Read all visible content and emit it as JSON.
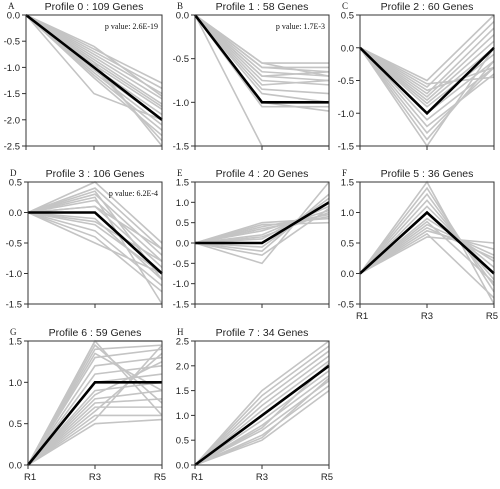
{
  "chart_data": [
    {
      "type": "line",
      "letter": "A",
      "title": "Profile 0 : 109 Genes",
      "pvalue": "p value: 2.6E-19",
      "x": [
        "R1",
        "R3",
        "R5"
      ],
      "show_x_labels": false,
      "ylim": [
        -2.5,
        0.0
      ],
      "yticks": [
        0.0,
        -0.5,
        -1.0,
        -1.5,
        -2.0,
        -2.5
      ],
      "ytick_labels": [
        "0.0",
        "-0.5",
        "-1.0",
        "-1.5",
        "-2.0",
        "-2.5"
      ],
      "profile": [
        0.0,
        -1.0,
        -2.0
      ],
      "genes": [
        [
          0,
          -0.65,
          -1.3
        ],
        [
          0,
          -0.7,
          -1.4
        ],
        [
          0,
          -0.75,
          -1.5
        ],
        [
          0,
          -0.8,
          -1.6
        ],
        [
          0,
          -0.85,
          -1.7
        ],
        [
          0,
          -0.9,
          -1.75
        ],
        [
          0,
          -0.95,
          -1.8
        ],
        [
          0,
          -1.0,
          -1.9
        ],
        [
          0,
          -1.05,
          -2.0
        ],
        [
          0,
          -1.1,
          -2.1
        ],
        [
          0,
          -1.15,
          -2.2
        ],
        [
          0,
          -1.2,
          -2.3
        ],
        [
          0,
          -0.6,
          -1.55
        ],
        [
          0,
          -1.5,
          -2.0
        ],
        [
          0,
          -1.0,
          -2.4
        ],
        [
          0,
          -0.9,
          -2.5
        ]
      ]
    },
    {
      "type": "line",
      "letter": "B",
      "title": "Profile 1 : 58 Genes",
      "pvalue": "p value: 1.7E-3",
      "x": [
        "R1",
        "R3",
        "R5"
      ],
      "show_x_labels": false,
      "ylim": [
        -1.5,
        0.0
      ],
      "yticks": [
        0.0,
        -0.5,
        -1.0,
        -1.5
      ],
      "ytick_labels": [
        "0.0",
        "-0.5",
        "-1.0",
        "-1.5"
      ],
      "profile": [
        0.0,
        -1.0,
        -1.0
      ],
      "genes": [
        [
          0,
          -0.55,
          -0.55
        ],
        [
          0,
          -0.6,
          -0.65
        ],
        [
          0,
          -0.65,
          -0.7
        ],
        [
          0,
          -0.7,
          -0.75
        ],
        [
          0,
          -0.75,
          -0.8
        ],
        [
          0,
          -0.6,
          -0.6
        ],
        [
          0,
          -0.7,
          -0.65
        ],
        [
          0,
          -0.8,
          -0.75
        ],
        [
          0,
          -0.85,
          -0.9
        ],
        [
          0,
          -0.9,
          -1.0
        ],
        [
          0,
          -1.0,
          -1.1
        ],
        [
          0,
          -1.05,
          -1.05
        ],
        [
          0,
          -1.5,
          -1.5
        ],
        [
          0,
          -0.55,
          -0.7
        ]
      ]
    },
    {
      "type": "line",
      "letter": "C",
      "title": "Profile 2 : 60 Genes",
      "pvalue": "",
      "x": [
        "R1",
        "R3",
        "R5"
      ],
      "show_x_labels": false,
      "ylim": [
        -1.5,
        0.5
      ],
      "yticks": [
        0.5,
        0.0,
        -0.5,
        -1.0,
        -1.5
      ],
      "ytick_labels": [
        "0.5",
        "0.0",
        "-0.5",
        "-1.0",
        "-1.5"
      ],
      "profile": [
        0.0,
        -1.0,
        0.0
      ],
      "genes": [
        [
          0,
          -0.5,
          0.5
        ],
        [
          0,
          -0.6,
          0.4
        ],
        [
          0,
          -0.7,
          0.3
        ],
        [
          0,
          -0.75,
          0.2
        ],
        [
          0,
          -0.8,
          0.1
        ],
        [
          0,
          -0.85,
          0.0
        ],
        [
          0,
          -0.9,
          -0.1
        ],
        [
          0,
          -1.0,
          -0.2
        ],
        [
          0,
          -1.1,
          -0.3
        ],
        [
          0,
          -1.2,
          -0.4
        ],
        [
          0,
          -1.3,
          -0.3
        ],
        [
          0,
          -1.4,
          -0.2
        ],
        [
          0,
          -1.5,
          0.0
        ],
        [
          0,
          -0.55,
          -0.45
        ],
        [
          0,
          -0.65,
          -0.3
        ]
      ]
    },
    {
      "type": "line",
      "letter": "D",
      "title": "Profile 3 : 106 Genes",
      "pvalue": "p value: 6.2E-4",
      "x": [
        "R1",
        "R3",
        "R5"
      ],
      "show_x_labels": false,
      "ylim": [
        -1.5,
        0.5
      ],
      "yticks": [
        0.5,
        0.0,
        -0.5,
        -1.0,
        -1.5
      ],
      "ytick_labels": [
        "0.5",
        "0.0",
        "-0.5",
        "-1.0",
        "-1.5"
      ],
      "profile": [
        0.0,
        0.0,
        -1.0
      ],
      "genes": [
        [
          0,
          0.5,
          -0.5
        ],
        [
          0,
          0.4,
          -0.6
        ],
        [
          0,
          0.3,
          -0.7
        ],
        [
          0,
          0.2,
          -0.8
        ],
        [
          0,
          0.1,
          -0.9
        ],
        [
          0,
          0.0,
          -1.0
        ],
        [
          0,
          -0.1,
          -1.1
        ],
        [
          0,
          -0.2,
          -1.0
        ],
        [
          0,
          -0.3,
          -1.2
        ],
        [
          0,
          -0.4,
          -1.3
        ],
        [
          0,
          -0.5,
          -1.0
        ],
        [
          0,
          0.25,
          -1.5
        ],
        [
          0,
          0.1,
          -0.6
        ],
        [
          0,
          -0.15,
          -0.8
        ],
        [
          0,
          0.35,
          -1.1
        ]
      ]
    },
    {
      "type": "line",
      "letter": "E",
      "title": "Profile 4 : 20 Genes",
      "pvalue": "",
      "x": [
        "R1",
        "R3",
        "R5"
      ],
      "show_x_labels": false,
      "ylim": [
        -1.5,
        1.5
      ],
      "yticks": [
        1.5,
        1.0,
        0.5,
        0.0,
        -0.5,
        -1.0,
        -1.5
      ],
      "ytick_labels": [
        "1.5",
        "1.0",
        "0.5",
        "0.0",
        "-0.5",
        "-1.0",
        "-1.5"
      ],
      "profile": [
        0.0,
        0.0,
        1.0
      ],
      "genes": [
        [
          0,
          0.5,
          0.6
        ],
        [
          0,
          0.4,
          0.7
        ],
        [
          0,
          0.3,
          0.8
        ],
        [
          0,
          0.2,
          0.9
        ],
        [
          0,
          0.1,
          1.0
        ],
        [
          0,
          -0.1,
          1.1
        ],
        [
          0,
          -0.2,
          1.2
        ],
        [
          0,
          -0.5,
          1.5
        ],
        [
          0,
          0.45,
          0.5
        ],
        [
          0,
          0.35,
          0.65
        ],
        [
          0,
          0.15,
          0.75
        ],
        [
          0,
          -0.3,
          0.85
        ]
      ]
    },
    {
      "type": "line",
      "letter": "F",
      "title": "Profile 5 : 36 Genes",
      "pvalue": "",
      "x": [
        "R1",
        "R3",
        "R5"
      ],
      "show_x_labels": true,
      "ylim": [
        -0.5,
        1.5
      ],
      "yticks": [
        1.5,
        1.0,
        0.5,
        0.0,
        -0.5
      ],
      "ytick_labels": [
        "1.5",
        "1.0",
        "0.5",
        "0.0",
        "-0.5"
      ],
      "profile": [
        0.0,
        1.0,
        0.0
      ],
      "genes": [
        [
          0,
          0.6,
          0.5
        ],
        [
          0,
          0.7,
          0.4
        ],
        [
          0,
          0.8,
          0.3
        ],
        [
          0,
          0.9,
          0.2
        ],
        [
          0,
          1.0,
          0.1
        ],
        [
          0,
          1.1,
          0.0
        ],
        [
          0,
          1.2,
          -0.1
        ],
        [
          0,
          1.3,
          -0.2
        ],
        [
          0,
          1.4,
          -0.3
        ],
        [
          0,
          1.5,
          -0.5
        ],
        [
          0,
          0.65,
          -0.4
        ],
        [
          0,
          0.75,
          0.25
        ],
        [
          0,
          0.85,
          -0.15
        ]
      ]
    },
    {
      "type": "line",
      "letter": "G",
      "title": "Profile 6 : 59 Genes",
      "pvalue": "",
      "x": [
        "R1",
        "R3",
        "R5"
      ],
      "show_x_labels": true,
      "ylim": [
        0.0,
        1.5
      ],
      "yticks": [
        1.5,
        1.0,
        0.5,
        0.0
      ],
      "ytick_labels": [
        "1.5",
        "1.0",
        "0.5",
        "0.0"
      ],
      "profile": [
        0.0,
        1.0,
        1.0
      ],
      "genes": [
        [
          0,
          0.5,
          0.55
        ],
        [
          0,
          0.6,
          0.6
        ],
        [
          0,
          0.7,
          0.7
        ],
        [
          0,
          0.75,
          0.8
        ],
        [
          0,
          0.8,
          0.9
        ],
        [
          0,
          0.9,
          1.0
        ],
        [
          0,
          1.0,
          1.1
        ],
        [
          0,
          1.1,
          1.2
        ],
        [
          0,
          1.2,
          1.3
        ],
        [
          0,
          1.3,
          1.4
        ],
        [
          0,
          1.4,
          1.45
        ],
        [
          0,
          1.5,
          1.5
        ],
        [
          0,
          1.5,
          0.6
        ],
        [
          0,
          1.45,
          0.75
        ],
        [
          0,
          0.55,
          1.45
        ],
        [
          0,
          0.65,
          1.35
        ],
        [
          0,
          1.35,
          0.9
        ],
        [
          0,
          0.85,
          1.25
        ]
      ]
    },
    {
      "type": "line",
      "letter": "H",
      "title": "Profile 7 : 34 Genes",
      "pvalue": "",
      "x": [
        "R1",
        "R3",
        "R5"
      ],
      "show_x_labels": true,
      "ylim": [
        0.0,
        2.5
      ],
      "yticks": [
        2.5,
        2.0,
        1.5,
        1.0,
        0.5,
        0.0
      ],
      "ytick_labels": [
        "2.5",
        "2.0",
        "1.5",
        "1.0",
        "0.5",
        "0.0"
      ],
      "profile": [
        0.0,
        1.0,
        2.0
      ],
      "genes": [
        [
          0,
          0.5,
          1.5
        ],
        [
          0,
          0.6,
          1.6
        ],
        [
          0,
          0.7,
          1.7
        ],
        [
          0,
          0.8,
          1.8
        ],
        [
          0,
          0.9,
          1.9
        ],
        [
          0,
          1.0,
          2.0
        ],
        [
          0,
          1.1,
          2.1
        ],
        [
          0,
          1.2,
          2.2
        ],
        [
          0,
          1.3,
          2.3
        ],
        [
          0,
          1.4,
          2.4
        ],
        [
          0,
          1.5,
          2.5
        ],
        [
          0,
          0.55,
          1.75
        ],
        [
          0,
          0.75,
          2.05
        ]
      ]
    }
  ]
}
